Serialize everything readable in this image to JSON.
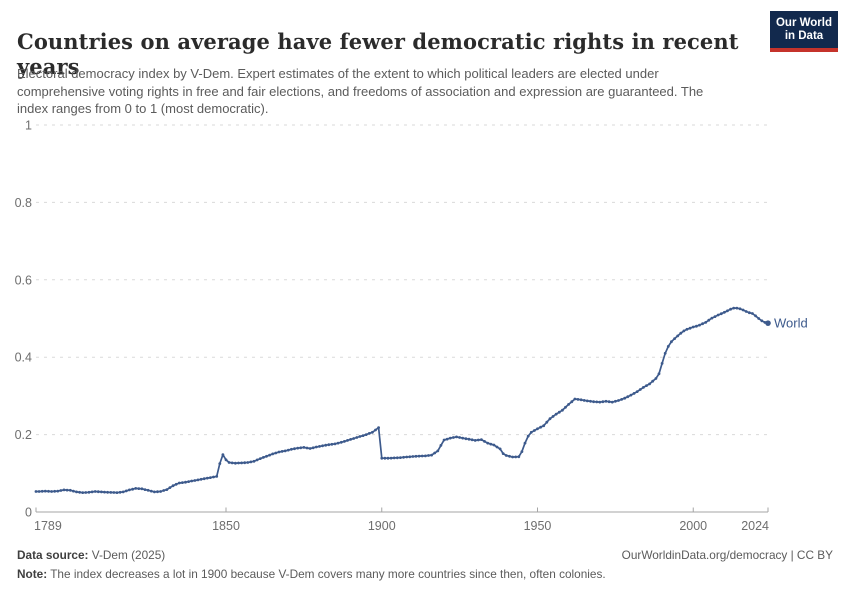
{
  "header": {
    "title": "Countries on average have fewer democratic rights in recent years",
    "subtitle": "Electoral democracy index by V-Dem. Expert estimates of the extent to which political leaders are elected under comprehensive voting rights in free and fair elections, and freedoms of association and expression are guaranteed. The index ranges from 0 to 1 (most democratic).",
    "logo": {
      "line1": "Our World",
      "line2": "in Data",
      "bg_color": "#12294d",
      "bar_color": "#c5332b"
    }
  },
  "chart_data": {
    "type": "line",
    "title": "Countries on average have fewer democratic rights in recent years",
    "xlabel": "",
    "ylabel": "",
    "x_range": [
      1789,
      2024
    ],
    "y_range": [
      0,
      1
    ],
    "grid": "horizontal-dashed",
    "legend_position": "end-of-line",
    "x_ticks": [
      1789,
      1850,
      1900,
      1950,
      2000,
      2024
    ],
    "x_tick_labels": [
      "1789",
      "1850",
      "1900",
      "1950",
      "2000",
      "2024"
    ],
    "y_ticks": [
      0,
      0.2,
      0.4,
      0.6,
      0.8,
      1
    ],
    "y_tick_labels": [
      "0",
      "0.2",
      "0.4",
      "0.6",
      "0.8",
      "1"
    ],
    "end_label": "World",
    "colors": {
      "line": "#3d5a8c",
      "grid": "#dadada",
      "axis": "#a5a5a5",
      "tick_text": "#6e6e6e"
    },
    "series": [
      {
        "name": "World",
        "color": "#3d5a8c",
        "points": [
          [
            1789,
            0.053
          ],
          [
            1790,
            0.053
          ],
          [
            1792,
            0.054
          ],
          [
            1794,
            0.053
          ],
          [
            1796,
            0.054
          ],
          [
            1798,
            0.057
          ],
          [
            1800,
            0.056
          ],
          [
            1802,
            0.052
          ],
          [
            1804,
            0.05
          ],
          [
            1806,
            0.051
          ],
          [
            1808,
            0.053
          ],
          [
            1810,
            0.052
          ],
          [
            1812,
            0.051
          ],
          [
            1815,
            0.05
          ],
          [
            1817,
            0.052
          ],
          [
            1819,
            0.057
          ],
          [
            1821,
            0.061
          ],
          [
            1823,
            0.06
          ],
          [
            1825,
            0.056
          ],
          [
            1827,
            0.052
          ],
          [
            1829,
            0.053
          ],
          [
            1831,
            0.058
          ],
          [
            1833,
            0.068
          ],
          [
            1835,
            0.075
          ],
          [
            1837,
            0.077
          ],
          [
            1839,
            0.08
          ],
          [
            1841,
            0.083
          ],
          [
            1843,
            0.086
          ],
          [
            1845,
            0.089
          ],
          [
            1847,
            0.092
          ],
          [
            1848,
            0.125
          ],
          [
            1849,
            0.148
          ],
          [
            1850,
            0.135
          ],
          [
            1851,
            0.128
          ],
          [
            1853,
            0.126
          ],
          [
            1855,
            0.127
          ],
          [
            1857,
            0.128
          ],
          [
            1859,
            0.131
          ],
          [
            1861,
            0.138
          ],
          [
            1863,
            0.144
          ],
          [
            1865,
            0.15
          ],
          [
            1867,
            0.155
          ],
          [
            1869,
            0.158
          ],
          [
            1871,
            0.162
          ],
          [
            1873,
            0.165
          ],
          [
            1875,
            0.167
          ],
          [
            1877,
            0.164
          ],
          [
            1879,
            0.168
          ],
          [
            1881,
            0.171
          ],
          [
            1883,
            0.174
          ],
          [
            1885,
            0.176
          ],
          [
            1887,
            0.18
          ],
          [
            1889,
            0.185
          ],
          [
            1891,
            0.19
          ],
          [
            1893,
            0.195
          ],
          [
            1895,
            0.2
          ],
          [
            1897,
            0.206
          ],
          [
            1899,
            0.218
          ],
          [
            1900,
            0.139
          ],
          [
            1902,
            0.139
          ],
          [
            1905,
            0.14
          ],
          [
            1908,
            0.142
          ],
          [
            1911,
            0.144
          ],
          [
            1914,
            0.145
          ],
          [
            1916,
            0.147
          ],
          [
            1918,
            0.158
          ],
          [
            1919,
            0.172
          ],
          [
            1920,
            0.186
          ],
          [
            1922,
            0.191
          ],
          [
            1924,
            0.194
          ],
          [
            1926,
            0.191
          ],
          [
            1928,
            0.188
          ],
          [
            1930,
            0.185
          ],
          [
            1932,
            0.187
          ],
          [
            1934,
            0.178
          ],
          [
            1936,
            0.173
          ],
          [
            1938,
            0.163
          ],
          [
            1939,
            0.151
          ],
          [
            1940,
            0.146
          ],
          [
            1942,
            0.142
          ],
          [
            1944,
            0.143
          ],
          [
            1945,
            0.156
          ],
          [
            1946,
            0.178
          ],
          [
            1947,
            0.196
          ],
          [
            1948,
            0.206
          ],
          [
            1950,
            0.215
          ],
          [
            1952,
            0.223
          ],
          [
            1954,
            0.241
          ],
          [
            1956,
            0.253
          ],
          [
            1958,
            0.263
          ],
          [
            1960,
            0.278
          ],
          [
            1962,
            0.292
          ],
          [
            1964,
            0.29
          ],
          [
            1966,
            0.287
          ],
          [
            1968,
            0.285
          ],
          [
            1970,
            0.284
          ],
          [
            1972,
            0.286
          ],
          [
            1974,
            0.284
          ],
          [
            1976,
            0.288
          ],
          [
            1978,
            0.294
          ],
          [
            1980,
            0.302
          ],
          [
            1982,
            0.311
          ],
          [
            1984,
            0.322
          ],
          [
            1986,
            0.331
          ],
          [
            1988,
            0.345
          ],
          [
            1989,
            0.357
          ],
          [
            1990,
            0.384
          ],
          [
            1991,
            0.41
          ],
          [
            1992,
            0.428
          ],
          [
            1993,
            0.44
          ],
          [
            1994,
            0.448
          ],
          [
            1995,
            0.455
          ],
          [
            1996,
            0.462
          ],
          [
            1997,
            0.468
          ],
          [
            1998,
            0.472
          ],
          [
            1999,
            0.475
          ],
          [
            2000,
            0.478
          ],
          [
            2001,
            0.48
          ],
          [
            2002,
            0.483
          ],
          [
            2004,
            0.49
          ],
          [
            2006,
            0.501
          ],
          [
            2008,
            0.509
          ],
          [
            2010,
            0.516
          ],
          [
            2012,
            0.524
          ],
          [
            2013,
            0.527
          ],
          [
            2014,
            0.527
          ],
          [
            2015,
            0.525
          ],
          [
            2016,
            0.522
          ],
          [
            2017,
            0.518
          ],
          [
            2018,
            0.515
          ],
          [
            2019,
            0.513
          ],
          [
            2020,
            0.507
          ],
          [
            2021,
            0.5
          ],
          [
            2022,
            0.494
          ],
          [
            2023,
            0.49
          ],
          [
            2024,
            0.488
          ]
        ]
      }
    ]
  },
  "footer": {
    "source_label": "Data source:",
    "source_value": " V-Dem (2025)",
    "link_text": "OurWorldinData.org/democracy | CC BY",
    "note_label": "Note:",
    "note_value": " The index decreases a lot in 1900 because V-Dem covers many more countries since then, often colonies."
  }
}
